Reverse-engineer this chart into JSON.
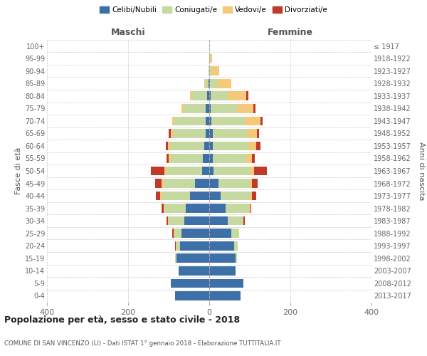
{
  "age_groups": [
    "0-4",
    "5-9",
    "10-14",
    "15-19",
    "20-24",
    "25-29",
    "30-34",
    "35-39",
    "40-44",
    "45-49",
    "50-54",
    "55-59",
    "60-64",
    "65-69",
    "70-74",
    "75-79",
    "80-84",
    "85-89",
    "90-94",
    "95-99",
    "100+"
  ],
  "birth_years": [
    "2013-2017",
    "2008-2012",
    "2003-2007",
    "1998-2002",
    "1993-1997",
    "1988-1992",
    "1983-1987",
    "1978-1982",
    "1973-1977",
    "1968-1972",
    "1963-1967",
    "1958-1962",
    "1953-1957",
    "1948-1952",
    "1943-1947",
    "1938-1942",
    "1933-1937",
    "1928-1932",
    "1923-1927",
    "1918-1922",
    "≤ 1917"
  ],
  "maschi": {
    "celibi": [
      85,
      95,
      75,
      80,
      72,
      68,
      62,
      58,
      48,
      35,
      18,
      15,
      12,
      8,
      8,
      8,
      5,
      2,
      0,
      0,
      0
    ],
    "coniugati": [
      0,
      0,
      0,
      4,
      8,
      18,
      38,
      52,
      68,
      78,
      88,
      80,
      85,
      82,
      78,
      55,
      38,
      8,
      2,
      0,
      0
    ],
    "vedovi": [
      0,
      0,
      0,
      0,
      2,
      2,
      2,
      3,
      5,
      5,
      5,
      5,
      5,
      5,
      5,
      5,
      5,
      2,
      0,
      0,
      0
    ],
    "divorziati": [
      0,
      0,
      0,
      0,
      2,
      3,
      3,
      5,
      10,
      15,
      32,
      5,
      5,
      5,
      0,
      0,
      0,
      0,
      0,
      0,
      0
    ]
  },
  "femmine": {
    "nubili": [
      78,
      85,
      65,
      65,
      62,
      55,
      45,
      40,
      28,
      22,
      10,
      8,
      8,
      8,
      5,
      4,
      4,
      2,
      0,
      0,
      0
    ],
    "coniugate": [
      0,
      0,
      0,
      4,
      8,
      18,
      38,
      58,
      72,
      78,
      90,
      82,
      88,
      85,
      82,
      65,
      42,
      18,
      5,
      2,
      0
    ],
    "vedove": [
      0,
      0,
      0,
      0,
      0,
      0,
      2,
      3,
      5,
      5,
      10,
      15,
      20,
      25,
      40,
      40,
      45,
      35,
      20,
      5,
      0
    ],
    "divorziate": [
      0,
      0,
      0,
      0,
      0,
      0,
      2,
      3,
      10,
      15,
      32,
      8,
      10,
      5,
      5,
      5,
      5,
      0,
      0,
      0,
      0
    ]
  },
  "colors": {
    "celibi": "#3D6FA8",
    "coniugati": "#C5D9A0",
    "vedovi": "#F5C97A",
    "divorziati": "#C0392B"
  },
  "xlim": 400,
  "title": "Popolazione per età, sesso e stato civile - 2018",
  "subtitle": "COMUNE DI SAN VINCENZO (LI) - Dati ISTAT 1° gennaio 2018 - Elaborazione TUTTITALIA.IT",
  "ylabel": "Fasce di età",
  "ylabel_right": "Anni di nascita",
  "xlabel_maschi": "Maschi",
  "xlabel_femmine": "Femmine",
  "background_color": "#ffffff",
  "grid_color": "#cccccc",
  "legend_labels": [
    "Celibi/Nubili",
    "Coniugati/e",
    "Vedovi/e",
    "Divorziati/e"
  ]
}
